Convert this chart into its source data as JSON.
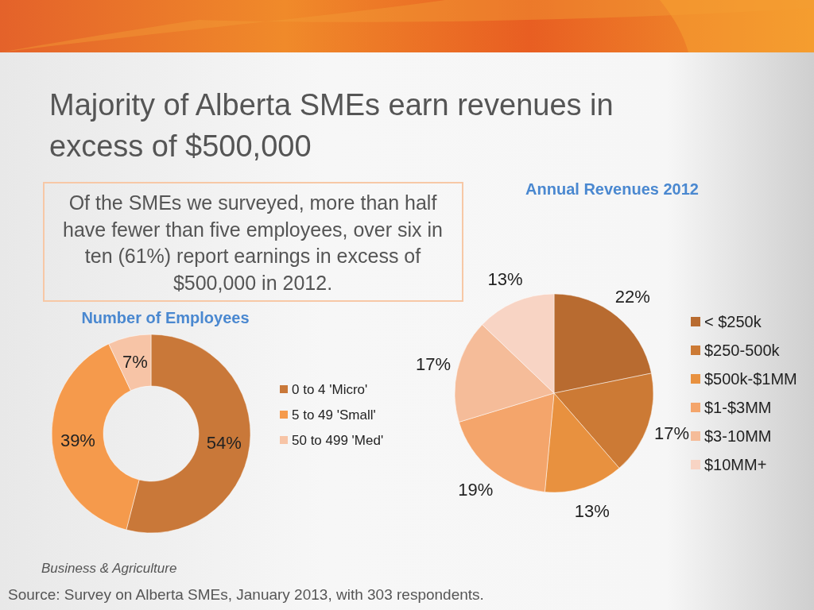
{
  "chart_data": [
    {
      "type": "other",
      "title": "Majority of Alberta SMEs earn revenues in excess of $500,000",
      "annotations": [
        "Of the SMEs we surveyed, more than half have fewer than five employees, over six in ten (61%) report earnings in excess of $500,000 in 2012.",
        "Business & Agriculture",
        "Source: Survey on Alberta SMEs, January 2013, with 303 respondents."
      ]
    },
    {
      "type": "donut",
      "title": "Number of Employees",
      "categories": [
        "0 to 4 'Micro'",
        "5 to 49 'Small'",
        "50 to 499 'Med'"
      ],
      "values": [
        54,
        39,
        7
      ],
      "colors": [
        "#c97839",
        "#f59a4c",
        "#f7c4a6"
      ],
      "value_labels": [
        "54%",
        "39%",
        "7%"
      ],
      "legend": "right"
    },
    {
      "type": "pie",
      "title": "Annual Revenues 2012",
      "categories": [
        "< $250k",
        "$250-500k",
        "$500k-$1MM",
        "$1-$3MM",
        "$3-10MM",
        "$10MM+"
      ],
      "values": [
        22,
        17,
        13,
        19,
        17,
        13
      ],
      "colors": [
        "#b86b30",
        "#cc7a35",
        "#e8913f",
        "#f4a56b",
        "#f5bc99",
        "#f8d4c4"
      ],
      "value_labels": [
        "22%",
        "17%",
        "13%",
        "19%",
        "17%",
        "13%"
      ],
      "legend": "right"
    }
  ]
}
